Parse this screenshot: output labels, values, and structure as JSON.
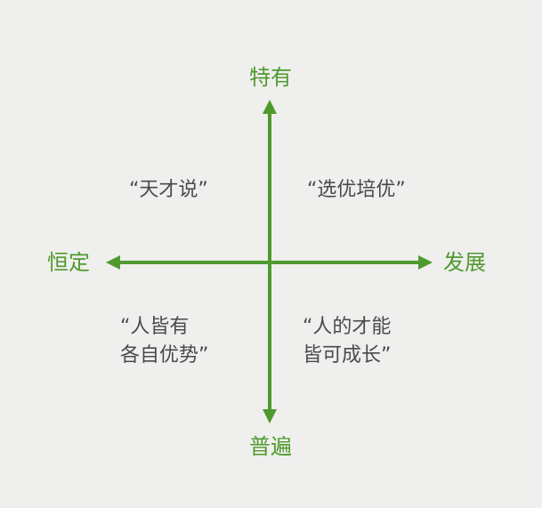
{
  "axes": {
    "top": "特有",
    "bottom": "普遍",
    "left": "恒定",
    "right": "发展"
  },
  "quadrants": {
    "top_left": {
      "lines": [
        "“天才说”"
      ]
    },
    "top_right": {
      "lines": [
        "“选优培优”"
      ]
    },
    "bottom_left": {
      "lines": [
        "“人皆有",
        "各自优势”"
      ]
    },
    "bottom_right": {
      "lines": [
        "“人的才能",
        "皆可成长”"
      ]
    }
  },
  "colors": {
    "background": "#efefed",
    "axis": "#4f9a2f",
    "text": "#4a4a4a"
  }
}
